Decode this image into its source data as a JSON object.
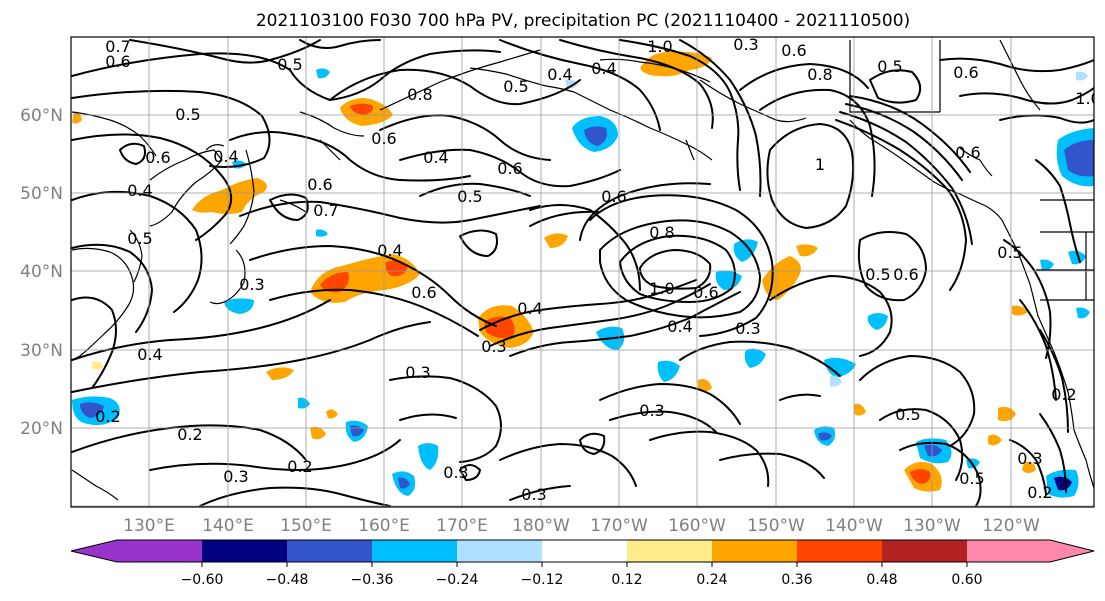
{
  "title": "2021103100 F030 700 hPa PV, precipitation PC (2021110400 - 2021110500)",
  "lat_labels": [
    "60°N",
    "50°N",
    "40°N",
    "30°N",
    "20°N"
  ],
  "lon_labels": [
    "130°E",
    "140°E",
    "150°E",
    "160°E",
    "170°E",
    "180°W",
    "170°W",
    "160°W",
    "150°W",
    "140°W",
    "130°W",
    "120°W"
  ],
  "colorbar": {
    "colors": [
      "#9933cc",
      "#000080",
      "#3355cc",
      "#00bfff",
      "#b0e0ff",
      "#ffffff",
      "#ffeb8a",
      "#ffa500",
      "#ff4500",
      "#b22222",
      "#ff88aa"
    ],
    "tick_labels": [
      "−0.60",
      "−0.48",
      "−0.36",
      "−0.24",
      "−0.12",
      "0.12",
      "0.24",
      "0.36",
      "0.48",
      "0.60"
    ]
  },
  "contour_labels": [
    "0.7",
    "0.6",
    "0.5",
    "0.5",
    "0.6",
    "0.4",
    "0.6",
    "0.7",
    "0.4",
    "0.5",
    "0.3",
    "0.4",
    "0.6",
    "0.4",
    "0.8",
    "0.5",
    "0.6",
    "0.4",
    "0.3",
    "0.4",
    "0.6",
    "0.2",
    "0.3",
    "0.2",
    "0.3",
    "0.3",
    "0.3",
    "0.6",
    "0.5",
    "1.0",
    "0.8",
    "1.0",
    "0.6",
    "0.4",
    "0.3",
    "0.3",
    "0.8",
    "0.6",
    "0.5",
    "1",
    "0.6",
    "0.5",
    "0.5",
    "0.6",
    "0.5",
    "0.5",
    "0.2",
    "0.3",
    "0.2",
    "1.0",
    "0.6",
    "0.4",
    "0.4",
    "0.3",
    "0.2"
  ]
}
